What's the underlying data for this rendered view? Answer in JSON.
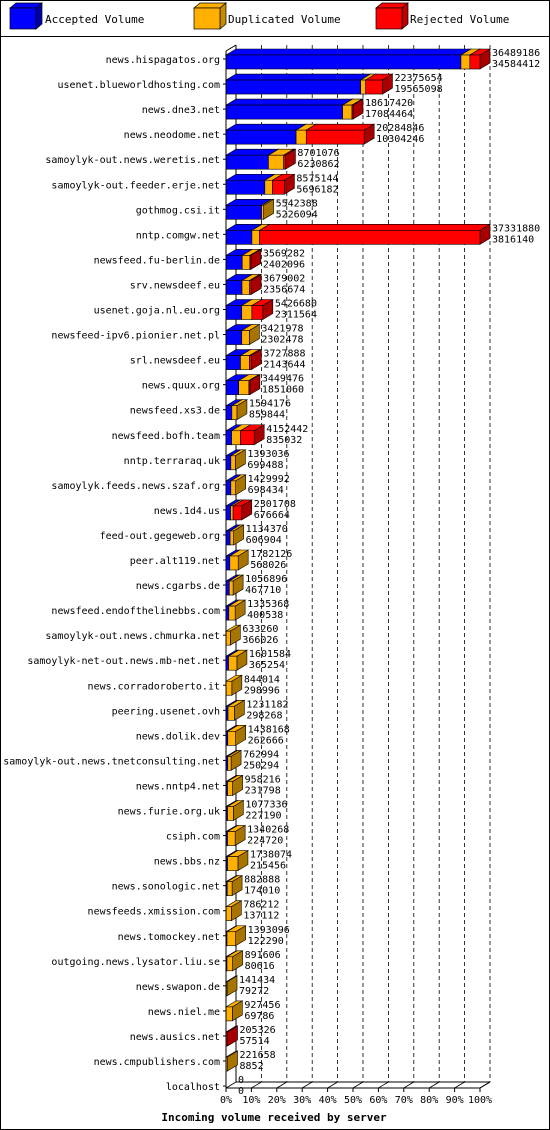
{
  "chart_data": {
    "type": "bar",
    "xlabel": "Incoming volume received by server",
    "x_ticks": [
      "0%",
      "10%",
      "20%",
      "30%",
      "40%",
      "50%",
      "60%",
      "70%",
      "80%",
      "90%",
      "100%"
    ],
    "legend": {
      "placement": "top",
      "items": [
        {
          "name": "Accepted Volume",
          "color": "#0000ff"
        },
        {
          "name": "Duplicated Volume",
          "color": "#ffb000"
        },
        {
          "name": "Rejected Volume",
          "color": "#ff0000"
        }
      ]
    },
    "series_colors": {
      "accepted": "#0000ff",
      "duplicated": "#ffb000",
      "rejected": "#ff0000",
      "dark_duplicated": "#c88a00",
      "dark_rejected": "#c00000"
    },
    "servers": [
      {
        "name": "news.hispagatos.org",
        "total": "36489186",
        "accepted_label": "34584412",
        "accepted_pct": 0.925,
        "duplicated_pct": 0.035,
        "rejected_pct": 0.04
      },
      {
        "name": "usenet.blueworldhosting.com",
        "total": "22375654",
        "accepted_label": "19565098",
        "accepted_pct": 0.53,
        "duplicated_pct": 0.02,
        "rejected_pct": 0.066
      },
      {
        "name": "news.dne3.net",
        "total": "18617420",
        "accepted_label": "17084464",
        "accepted_pct": 0.459,
        "duplicated_pct": 0.037,
        "rejected_pct": 0.004
      },
      {
        "name": "news.neodome.net",
        "total": "20284846",
        "accepted_label": "10304246",
        "accepted_pct": 0.276,
        "duplicated_pct": 0.04,
        "rejected_pct": 0.228
      },
      {
        "name": "samoylyk-out.news.weretis.net",
        "total": "8701076",
        "accepted_label": "6230862",
        "accepted_pct": 0.167,
        "duplicated_pct": 0.06,
        "rejected_pct": 0.007
      },
      {
        "name": "samoylyk-out.feeder.erje.net",
        "total": "8575144",
        "accepted_label": "5696182",
        "accepted_pct": 0.153,
        "duplicated_pct": 0.03,
        "rejected_pct": 0.047
      },
      {
        "name": "gothmog.csi.it",
        "total": "5542388",
        "accepted_label": "5226094",
        "accepted_pct": 0.14,
        "duplicated_pct": 0.008,
        "rejected_pct": 0.0
      },
      {
        "name": "nntp.comgw.net",
        "total": "37331880",
        "accepted_label": "3816140",
        "accepted_pct": 0.102,
        "duplicated_pct": 0.03,
        "rejected_pct": 0.868
      },
      {
        "name": "newsfeed.fu-berlin.de",
        "total": "3569282",
        "accepted_label": "2402096",
        "accepted_pct": 0.064,
        "duplicated_pct": 0.03,
        "rejected_pct": 0.002
      },
      {
        "name": "srv.newsdeef.eu",
        "total": "3679002",
        "accepted_label": "2356674",
        "accepted_pct": 0.063,
        "duplicated_pct": 0.03,
        "rejected_pct": 0.006
      },
      {
        "name": "usenet.goja.nl.eu.org",
        "total": "5426680",
        "accepted_label": "2311564",
        "accepted_pct": 0.062,
        "duplicated_pct": 0.04,
        "rejected_pct": 0.043
      },
      {
        "name": "newsfeed-ipv6.pionier.net.pl",
        "total": "3421978",
        "accepted_label": "2302478",
        "accepted_pct": 0.062,
        "duplicated_pct": 0.03,
        "rejected_pct": 0.0
      },
      {
        "name": "srl.newsdeef.eu",
        "total": "3727888",
        "accepted_label": "2143644",
        "accepted_pct": 0.057,
        "duplicated_pct": 0.035,
        "rejected_pct": 0.008
      },
      {
        "name": "news.quux.org",
        "total": "3449476",
        "accepted_label": "1851060",
        "accepted_pct": 0.05,
        "duplicated_pct": 0.04,
        "rejected_pct": 0.002
      },
      {
        "name": "newsfeed.xs3.de",
        "total": "1594176",
        "accepted_label": "859844",
        "accepted_pct": 0.023,
        "duplicated_pct": 0.02,
        "rejected_pct": 0.0
      },
      {
        "name": "newsfeed.bofh.team",
        "total": "4152442",
        "accepted_label": "835032",
        "accepted_pct": 0.022,
        "duplicated_pct": 0.035,
        "rejected_pct": 0.054
      },
      {
        "name": "nntp.terraraq.uk",
        "total": "1393036",
        "accepted_label": "699488",
        "accepted_pct": 0.019,
        "duplicated_pct": 0.018,
        "rejected_pct": 0.0
      },
      {
        "name": "samoylyk.feeds.news.szaf.org",
        "total": "1429992",
        "accepted_label": "698434",
        "accepted_pct": 0.019,
        "duplicated_pct": 0.019,
        "rejected_pct": 0.0
      },
      {
        "name": "news.1d4.us",
        "total": "2301708",
        "accepted_label": "676664",
        "accepted_pct": 0.018,
        "duplicated_pct": 0.01,
        "rejected_pct": 0.034
      },
      {
        "name": "feed-out.gegeweb.org",
        "total": "1134370",
        "accepted_label": "606904",
        "accepted_pct": 0.016,
        "duplicated_pct": 0.014,
        "rejected_pct": 0.0
      },
      {
        "name": "peer.alt119.net",
        "total": "1782126",
        "accepted_label": "568026",
        "accepted_pct": 0.015,
        "duplicated_pct": 0.033,
        "rejected_pct": 0.0
      },
      {
        "name": "news.cgarbs.de",
        "total": "1056896",
        "accepted_label": "467710",
        "accepted_pct": 0.013,
        "duplicated_pct": 0.015,
        "rejected_pct": 0.0
      },
      {
        "name": "newsfeed.endofthelinebbs.com",
        "total": "1335368",
        "accepted_label": "400538",
        "accepted_pct": 0.011,
        "duplicated_pct": 0.025,
        "rejected_pct": 0.0
      },
      {
        "name": "samoylyk-out.news.chmurka.net",
        "total": "633260",
        "accepted_label": "366026",
        "accepted_pct": 0.0,
        "duplicated_pct": 0.017,
        "rejected_pct": 0.0
      },
      {
        "name": "samoylyk-net-out.news.mb-net.net",
        "total": "1601584",
        "accepted_label": "365254",
        "accepted_pct": 0.01,
        "duplicated_pct": 0.033,
        "rejected_pct": 0.0
      },
      {
        "name": "news.corradoroberto.it",
        "total": "844014",
        "accepted_label": "298996",
        "accepted_pct": 0.0,
        "duplicated_pct": 0.023,
        "rejected_pct": 0.0
      },
      {
        "name": "peering.usenet.ovh",
        "total": "1231182",
        "accepted_label": "298268",
        "accepted_pct": 0.008,
        "duplicated_pct": 0.025,
        "rejected_pct": 0.0
      },
      {
        "name": "news.dolik.dev",
        "total": "1438168",
        "accepted_label": "262666",
        "accepted_pct": 0.007,
        "duplicated_pct": 0.031,
        "rejected_pct": 0.0
      },
      {
        "name": "samoylyk-out.news.tnetconsulting.net",
        "total": "762994",
        "accepted_label": "250294",
        "accepted_pct": 0.007,
        "duplicated_pct": 0.013,
        "rejected_pct": 0.0
      },
      {
        "name": "news.nntp4.net",
        "total": "958216",
        "accepted_label": "231798",
        "accepted_pct": 0.006,
        "duplicated_pct": 0.02,
        "rejected_pct": 0.0
      },
      {
        "name": "news.furie.org.uk",
        "total": "1077336",
        "accepted_label": "227190",
        "accepted_pct": 0.006,
        "duplicated_pct": 0.023,
        "rejected_pct": 0.0
      },
      {
        "name": "csiph.com",
        "total": "1340268",
        "accepted_label": "224720",
        "accepted_pct": 0.006,
        "duplicated_pct": 0.03,
        "rejected_pct": 0.0
      },
      {
        "name": "news.bbs.nz",
        "total": "1738074",
        "accepted_label": "215456",
        "accepted_pct": 0.006,
        "duplicated_pct": 0.041,
        "rejected_pct": 0.0
      },
      {
        "name": "news.sonologic.net",
        "total": "882888",
        "accepted_label": "174010",
        "accepted_pct": 0.005,
        "duplicated_pct": 0.019,
        "rejected_pct": 0.0
      },
      {
        "name": "newsfeeds.xmission.com",
        "total": "786212",
        "accepted_label": "137112",
        "accepted_pct": 0.0,
        "duplicated_pct": 0.021,
        "rejected_pct": 0.0
      },
      {
        "name": "news.tomockey.net",
        "total": "1393096",
        "accepted_label": "122290",
        "accepted_pct": 0.003,
        "duplicated_pct": 0.034,
        "rejected_pct": 0.0
      },
      {
        "name": "outgoing.news.lysator.liu.se",
        "total": "891606",
        "accepted_label": "80616",
        "accepted_pct": 0.002,
        "duplicated_pct": 0.022,
        "rejected_pct": 0.0
      },
      {
        "name": "news.swapon.de",
        "total": "141434",
        "accepted_label": "79272",
        "accepted_pct": 0.0,
        "duplicated_pct": 0.004,
        "rejected_pct": 0.0
      },
      {
        "name": "news.niel.me",
        "total": "927456",
        "accepted_label": "69786",
        "accepted_pct": 0.0,
        "duplicated_pct": 0.025,
        "rejected_pct": 0.0
      },
      {
        "name": "news.ausics.net",
        "total": "205326",
        "accepted_label": "57514",
        "accepted_pct": 0.0,
        "duplicated_pct": 0.0,
        "rejected_pct": 0.006
      },
      {
        "name": "news.cmpublishers.com",
        "total": "221658",
        "accepted_label": "8852",
        "accepted_pct": 0.0,
        "duplicated_pct": 0.006,
        "rejected_pct": 0.0
      },
      {
        "name": "localhost",
        "total": "0",
        "accepted_label": "0",
        "accepted_pct": 0.0,
        "duplicated_pct": 0.0,
        "rejected_pct": 0.0
      }
    ]
  }
}
